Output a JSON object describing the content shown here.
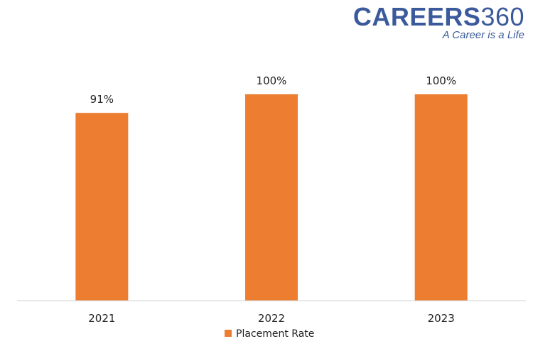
{
  "logo": {
    "brand_word": "CAREERS",
    "brand_number": "360",
    "tagline": "A Career is a Life"
  },
  "chart_data": {
    "type": "bar",
    "categories": [
      "2021",
      "2022",
      "2023"
    ],
    "series": [
      {
        "name": "Placement Rate",
        "values": [
          91,
          100,
          100
        ],
        "value_labels": [
          "91%",
          "100%",
          "100%"
        ],
        "color": "#ed7d31"
      }
    ],
    "title": "",
    "xlabel": "",
    "ylabel": "",
    "ylim": [
      0,
      100
    ],
    "grid": false,
    "legend": "bottom-center"
  }
}
